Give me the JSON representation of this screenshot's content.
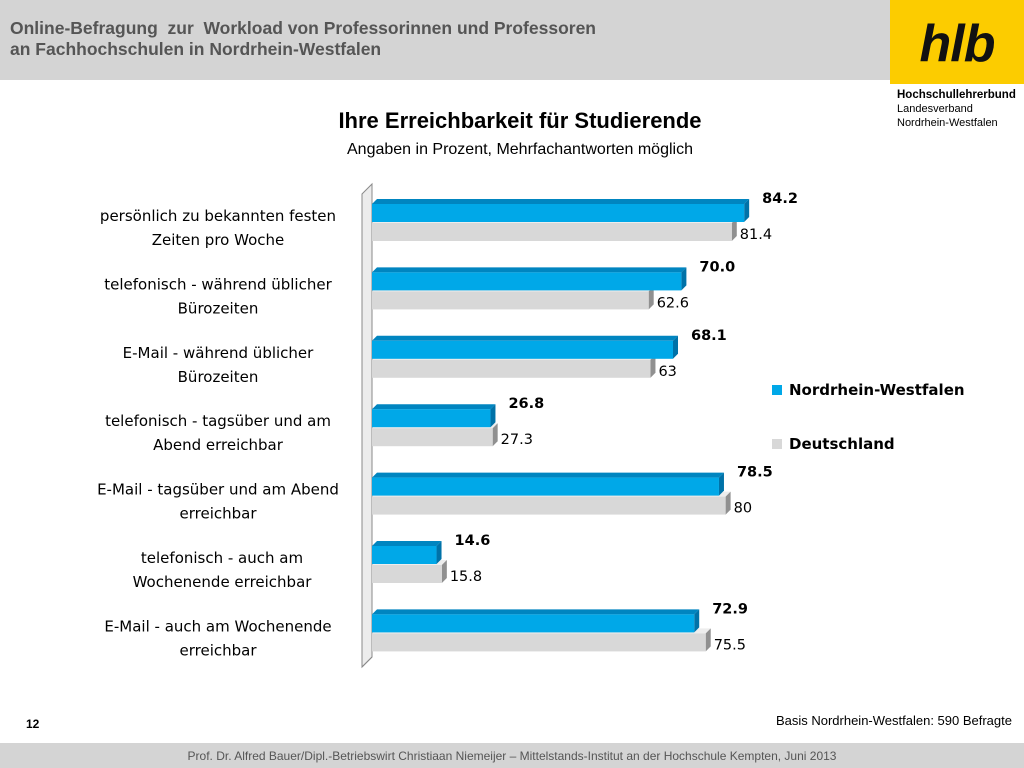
{
  "header": {
    "title_line1": "Online-Befragung  zur  Workload von Professorinnen und Professoren",
    "title_line2": "an Fachhochschulen in Nordrhein-Westfalen"
  },
  "logo": {
    "text": "hlb",
    "org_name": "Hochschullehrerbund",
    "org_sub1": "Landesverband",
    "org_sub2": "Nordrhein-Westfalen"
  },
  "colors": {
    "header_band": "#d4d4d4",
    "logo_box": "#fccc00",
    "nrw": "#00a8e8",
    "deutschland": "#d8d8d8"
  },
  "chart_data": {
    "type": "bar",
    "orientation": "horizontal",
    "title": "Ihre Erreichbarkeit für Studierende",
    "subtitle": "Angaben in Prozent, Mehrfachantworten möglich",
    "categories": [
      [
        "persönlich zu bekannten festen",
        "Zeiten pro Woche"
      ],
      [
        "telefonisch - während üblicher",
        "Bürozeiten"
      ],
      [
        "E-Mail - während üblicher",
        "Bürozeiten"
      ],
      [
        "telefonisch - tagsüber und am",
        "Abend erreichbar"
      ],
      [
        "E-Mail - tagsüber und am Abend",
        "erreichbar"
      ],
      [
        "telefonisch - auch am",
        "Wochenende erreichbar"
      ],
      [
        "E-Mail - auch am Wochenende",
        "erreichbar"
      ]
    ],
    "series": [
      {
        "name": "Nordrhein-Westfalen",
        "values": [
          84.2,
          70.0,
          68.1,
          26.8,
          78.5,
          14.6,
          72.9
        ],
        "labels": [
          "84.2",
          "70.0",
          "68.1",
          "26.8",
          "78.5",
          "14.6",
          "72.9"
        ]
      },
      {
        "name": "Deutschland",
        "values": [
          81.4,
          62.6,
          63,
          27.3,
          80,
          15.8,
          75.5
        ],
        "labels": [
          "81.4",
          "62.6",
          "63",
          "27.3",
          "80",
          "15.8",
          "75.5"
        ]
      }
    ],
    "xlim": [
      0,
      100
    ],
    "legend_position": "right",
    "grid": false
  },
  "footer": {
    "basis_note": "Basis Nordrhein-Westfalen: 590 Befragte",
    "page_number": "12",
    "credits": "Prof. Dr. Alfred Bauer/Dipl.-Betriebswirt Christiaan Niemeijer – Mittelstands-Institut an der Hochschule Kempten, Juni 2013"
  }
}
